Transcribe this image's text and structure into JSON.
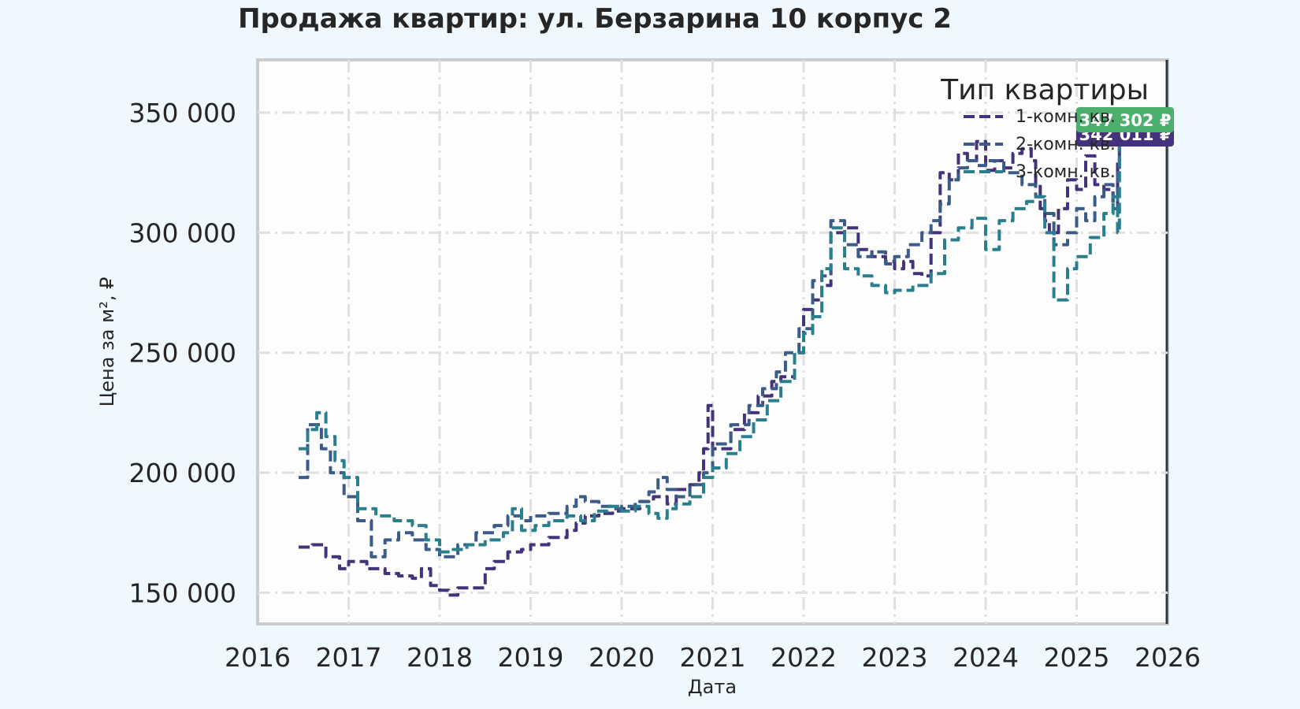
{
  "chart_data": {
    "type": "line",
    "title": "Продажа квартир: ул. Берзарина 10 корпус 2",
    "xlabel": "Дата",
    "ylabel": "Цена за м², ₽",
    "xlim": [
      2016,
      2026
    ],
    "ylim": [
      137000,
      372000
    ],
    "x_ticks": [
      "2016",
      "2017",
      "2018",
      "2019",
      "2020",
      "2021",
      "2022",
      "2023",
      "2024",
      "2025",
      "2026"
    ],
    "y_ticks": [
      {
        "value": 150000,
        "label": "150 000"
      },
      {
        "value": 200000,
        "label": "200 000"
      },
      {
        "value": 250000,
        "label": "250 000"
      },
      {
        "value": 300000,
        "label": "300 000"
      },
      {
        "value": 350000,
        "label": "350 000"
      }
    ],
    "grid": true,
    "legend": {
      "title": "Тип квартиры",
      "position": "top-right"
    },
    "colors": {
      "background": "#f0f8ff",
      "plot_area": "#fdfdfd",
      "grid": "#e0e0e0",
      "frame": "#cccccc"
    },
    "series": [
      {
        "name": "1-комн. кв.",
        "color": "#44337a",
        "x": [
          2016.45,
          2016.6,
          2016.75,
          2016.9,
          2017.0,
          2017.2,
          2017.4,
          2017.55,
          2017.7,
          2017.8,
          2017.9,
          2018.0,
          2018.1,
          2018.2,
          2018.35,
          2018.5,
          2018.6,
          2018.75,
          2018.9,
          2019.0,
          2019.2,
          2019.4,
          2019.5,
          2019.6,
          2019.75,
          2019.9,
          2020.0,
          2020.2,
          2020.35,
          2020.5,
          2020.6,
          2020.75,
          2020.85,
          2020.9,
          2020.95,
          2021.0,
          2021.2,
          2021.35,
          2021.5,
          2021.65,
          2021.75,
          2021.9,
          2022.0,
          2022.1,
          2022.2,
          2022.3,
          2022.45,
          2022.6,
          2022.75,
          2022.9,
          2023.0,
          2023.1,
          2023.2,
          2023.3,
          2023.4,
          2023.5,
          2023.6,
          2023.7,
          2023.8,
          2023.9,
          2024.0,
          2024.1,
          2024.2,
          2024.3,
          2024.4,
          2024.5,
          2024.55,
          2024.6,
          2024.65,
          2024.7,
          2024.8,
          2024.9,
          2025.0,
          2025.1,
          2025.2,
          2025.3,
          2025.4,
          2025.45,
          2025.47
        ],
        "y": [
          169000,
          170000,
          165000,
          160000,
          163000,
          160000,
          158000,
          157000,
          156000,
          160000,
          153000,
          151000,
          149000,
          152000,
          152000,
          160000,
          163000,
          167000,
          168000,
          170000,
          173000,
          176000,
          179000,
          182000,
          183000,
          184000,
          185000,
          188000,
          190000,
          187000,
          193000,
          195000,
          200000,
          210000,
          228000,
          210000,
          218000,
          225000,
          232000,
          238000,
          240000,
          250000,
          268000,
          272000,
          278000,
          300000,
          302000,
          293000,
          290000,
          288000,
          285000,
          288000,
          283000,
          282000,
          300000,
          325000,
          322000,
          333000,
          330000,
          338000,
          326000,
          330000,
          327000,
          333000,
          335000,
          330000,
          320000,
          310000,
          305000,
          300000,
          310000,
          322000,
          318000,
          332000,
          320000,
          318000,
          312000,
          330000,
          342011
        ]
      },
      {
        "name": "2-комн. кв.",
        "color": "#3b5b88",
        "x": [
          2016.45,
          2016.55,
          2016.7,
          2016.8,
          2016.95,
          2017.1,
          2017.25,
          2017.4,
          2017.55,
          2017.7,
          2017.85,
          2018.0,
          2018.2,
          2018.4,
          2018.6,
          2018.75,
          2018.9,
          2019.0,
          2019.2,
          2019.4,
          2019.5,
          2019.6,
          2019.75,
          2019.9,
          2020.0,
          2020.15,
          2020.3,
          2020.4,
          2020.5,
          2020.6,
          2020.75,
          2020.9,
          2021.0,
          2021.2,
          2021.4,
          2021.55,
          2021.7,
          2021.8,
          2021.95,
          2022.1,
          2022.2,
          2022.3,
          2022.45,
          2022.6,
          2022.75,
          2022.9,
          2023.0,
          2023.15,
          2023.3,
          2023.4,
          2023.5,
          2023.6,
          2023.7,
          2023.8,
          2023.9,
          2024.0,
          2024.2,
          2024.4,
          2024.55,
          2024.65,
          2024.75,
          2024.9,
          2025.0,
          2025.1,
          2025.2,
          2025.3,
          2025.4,
          2025.45,
          2025.47
        ],
        "y": [
          198000,
          220000,
          210000,
          200000,
          190000,
          180000,
          165000,
          172000,
          175000,
          172000,
          168000,
          165000,
          170000,
          175000,
          178000,
          182000,
          180000,
          182000,
          183000,
          186000,
          190000,
          188000,
          186000,
          185000,
          186000,
          188000,
          192000,
          198000,
          193000,
          190000,
          195000,
          200000,
          212000,
          220000,
          228000,
          235000,
          242000,
          250000,
          260000,
          280000,
          282000,
          305000,
          295000,
          290000,
          292000,
          287000,
          290000,
          295000,
          300000,
          305000,
          312000,
          322000,
          327000,
          330000,
          328000,
          330000,
          325000,
          320000,
          315000,
          308000,
          295000,
          300000,
          310000,
          305000,
          315000,
          320000,
          310000,
          325000,
          342000
        ]
      },
      {
        "name": "3-комн. кв.",
        "color": "#2a7f8e",
        "x": [
          2016.45,
          2016.55,
          2016.65,
          2016.75,
          2016.85,
          2016.95,
          2017.1,
          2017.3,
          2017.5,
          2017.7,
          2017.85,
          2018.0,
          2018.15,
          2018.3,
          2018.5,
          2018.7,
          2018.8,
          2018.9,
          2019.05,
          2019.2,
          2019.4,
          2019.55,
          2019.7,
          2019.85,
          2020.0,
          2020.15,
          2020.3,
          2020.4,
          2020.5,
          2020.6,
          2020.75,
          2020.9,
          2021.0,
          2021.15,
          2021.3,
          2021.45,
          2021.6,
          2021.75,
          2021.9,
          2022.0,
          2022.1,
          2022.2,
          2022.3,
          2022.45,
          2022.6,
          2022.75,
          2022.9,
          2023.0,
          2023.2,
          2023.4,
          2023.55,
          2023.7,
          2023.85,
          2024.0,
          2024.15,
          2024.3,
          2024.45,
          2024.55,
          2024.65,
          2024.75,
          2024.9,
          2025.0,
          2025.15,
          2025.3,
          2025.4,
          2025.45,
          2025.47
        ],
        "y": [
          210000,
          218000,
          225000,
          215000,
          205000,
          198000,
          185000,
          182000,
          180000,
          178000,
          172000,
          167000,
          168000,
          170000,
          172000,
          175000,
          185000,
          176000,
          178000,
          180000,
          182000,
          180000,
          184000,
          186000,
          184000,
          186000,
          183000,
          181000,
          185000,
          187000,
          190000,
          198000,
          202000,
          208000,
          215000,
          222000,
          230000,
          238000,
          250000,
          258000,
          265000,
          285000,
          302000,
          285000,
          282000,
          278000,
          275000,
          276000,
          278000,
          283000,
          297000,
          302000,
          306000,
          293000,
          305000,
          310000,
          313000,
          315000,
          300000,
          272000,
          285000,
          290000,
          298000,
          308000,
          315000,
          300000,
          347302
        ]
      }
    ],
    "end_labels": [
      {
        "series": "3-комн. кв.",
        "text": "347 302 ₽",
        "color": "#4caf6e"
      },
      {
        "series": "1-комн. кв.",
        "text": "342 011 ₽",
        "color": "#44337a"
      }
    ]
  }
}
